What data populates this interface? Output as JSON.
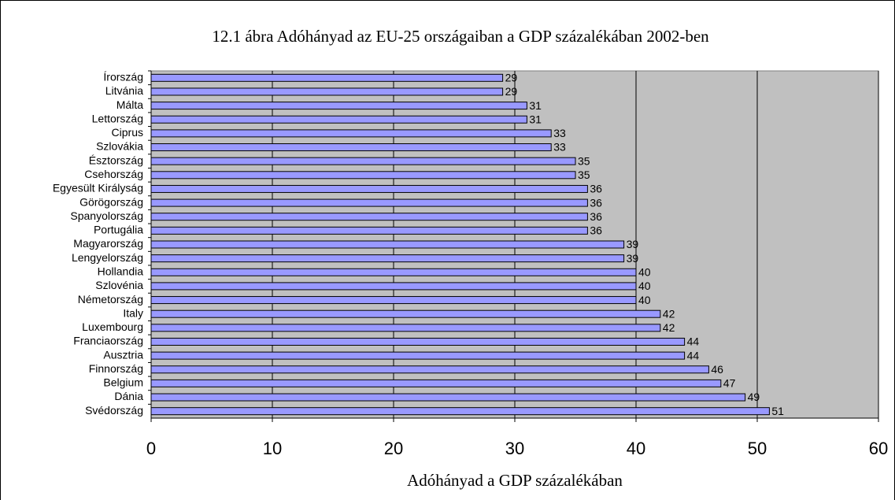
{
  "chart_data": {
    "type": "bar",
    "orientation": "horizontal",
    "title": "12.1 ábra  Adóhányad az EU-25 országaiban a GDP százalékában 2002-ben",
    "x_label": "Adóhányad a GDP százalékában",
    "categories": [
      "Írország",
      "Litvánia",
      "Málta",
      "Lettország",
      "Ciprus",
      "Szlovákia",
      "Észtország",
      "Csehország",
      "Egyesült Királyság",
      "Görögország",
      "Spanyolország",
      "Portugália",
      "Magyarország",
      "Lengyelország",
      "Hollandia",
      "Szlovénia",
      "Németország",
      "Italy",
      "Luxembourg",
      "Franciaország",
      "Ausztria",
      "Finnország",
      "Belgium",
      "Dánia",
      "Svédország"
    ],
    "values": [
      29,
      29,
      31,
      31,
      33,
      33,
      35,
      35,
      36,
      36,
      36,
      36,
      39,
      39,
      40,
      40,
      40,
      42,
      42,
      44,
      44,
      46,
      47,
      49,
      51
    ],
    "color": "#9999ff",
    "xlim": [
      0,
      60
    ],
    "xticks": [
      0,
      10,
      20,
      30,
      40,
      50,
      60
    ],
    "grid": true
  }
}
